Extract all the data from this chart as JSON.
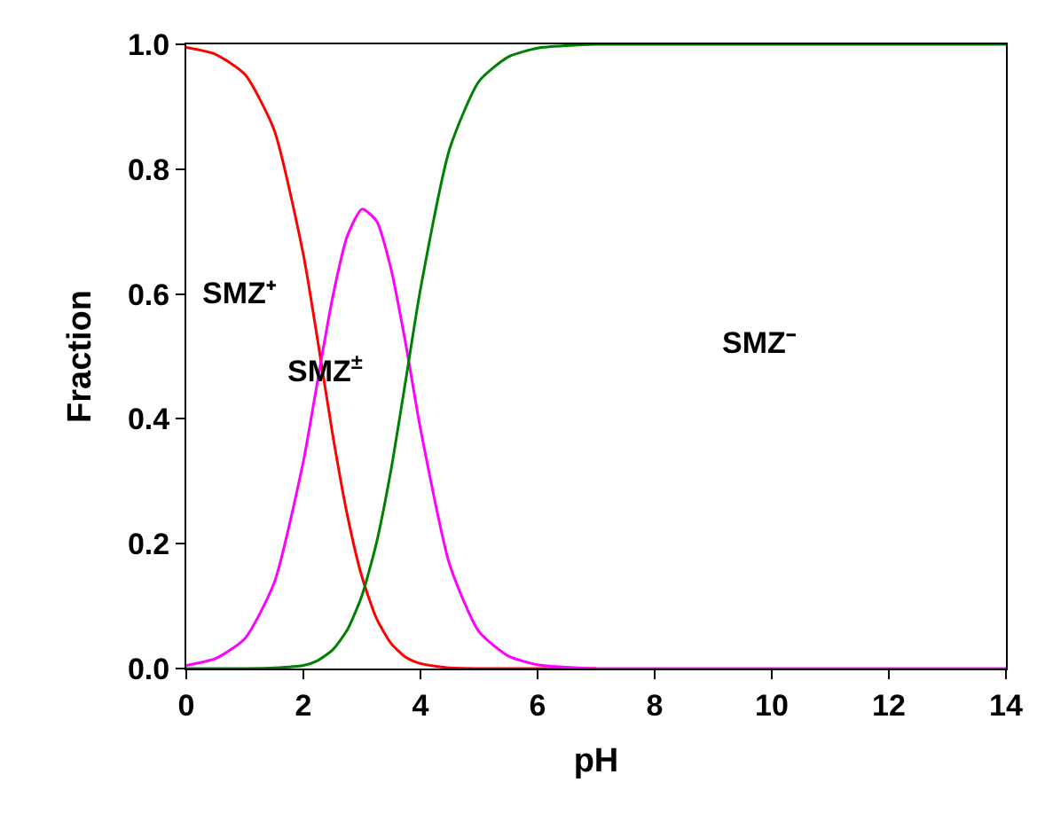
{
  "chart_data": {
    "type": "line",
    "xlabel": "pH",
    "ylabel": "Fraction",
    "x": [
      0,
      0.5,
      1,
      1.5,
      2,
      2.25,
      2.5,
      2.75,
      3,
      3.25,
      3.5,
      3.75,
      4,
      4.5,
      5,
      5.5,
      6,
      6.5,
      7,
      8,
      10,
      14
    ],
    "series": [
      {
        "color": "#ff0000",
        "values": [
          0.995,
          0.984,
          0.952,
          0.863,
          0.663,
          0.522,
          0.375,
          0.246,
          0.147,
          0.08,
          0.04,
          0.018,
          0.008,
          0.001,
          0,
          0,
          0,
          0,
          0,
          null,
          null,
          null
        ]
      },
      {
        "color": "#ff00ff",
        "values": [
          0.005,
          0.016,
          0.048,
          0.137,
          0.332,
          0.465,
          0.595,
          0.693,
          0.736,
          0.717,
          0.639,
          0.519,
          0.384,
          0.166,
          0.059,
          0.02,
          0.006,
          0.002,
          0,
          0,
          0,
          0
        ]
      },
      {
        "color": "#008000",
        "values": [
          0,
          0,
          0,
          0.001,
          0.005,
          0.013,
          0.03,
          0.062,
          0.117,
          0.202,
          0.32,
          0.463,
          0.608,
          0.833,
          0.941,
          0.98,
          0.994,
          0.998,
          1,
          1,
          1,
          1
        ]
      }
    ],
    "annotations": [
      "SMZ⁺",
      "SMZ$^{±}$",
      "SMZ⁻"
    ],
    "xlim": [
      0,
      14
    ],
    "xticks": [
      0,
      2,
      4,
      6,
      8,
      10,
      12,
      14
    ],
    "ylim": [
      0,
      1
    ],
    "yticks": [
      {
        "value": 0,
        "label": "0.0"
      },
      {
        "value": 0.2,
        "label": "0.2"
      },
      {
        "value": 0.4,
        "label": "0.4"
      },
      {
        "value": 0.6,
        "label": "0.6"
      },
      {
        "value": 0.8,
        "label": "0.8"
      },
      {
        "value": 1,
        "label": "1.0"
      }
    ],
    "legend": false,
    "marker": "none",
    "line_style": "solid"
  }
}
